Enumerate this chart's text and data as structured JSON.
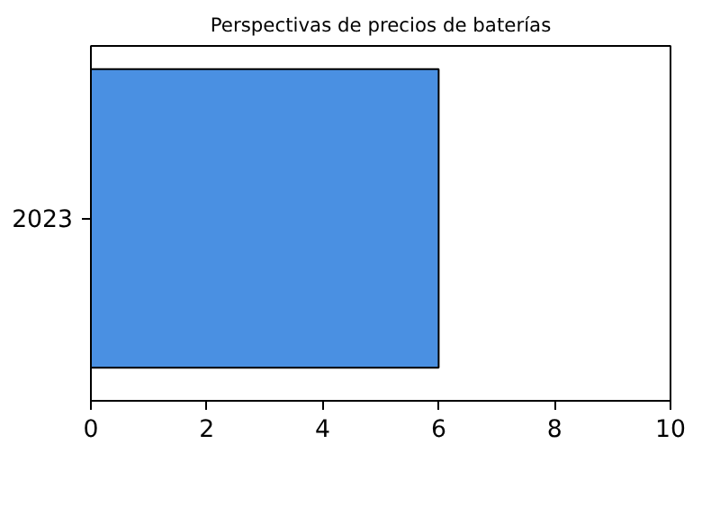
{
  "chart_data": {
    "type": "bar",
    "orientation": "horizontal",
    "title": "Perspectivas de precios de baterías",
    "categories": [
      "2023"
    ],
    "values": [
      6
    ],
    "color": "#4a90e2",
    "xlim": [
      0,
      10
    ],
    "xticks": [
      0,
      2,
      4,
      6,
      8,
      10
    ],
    "grid": false
  }
}
